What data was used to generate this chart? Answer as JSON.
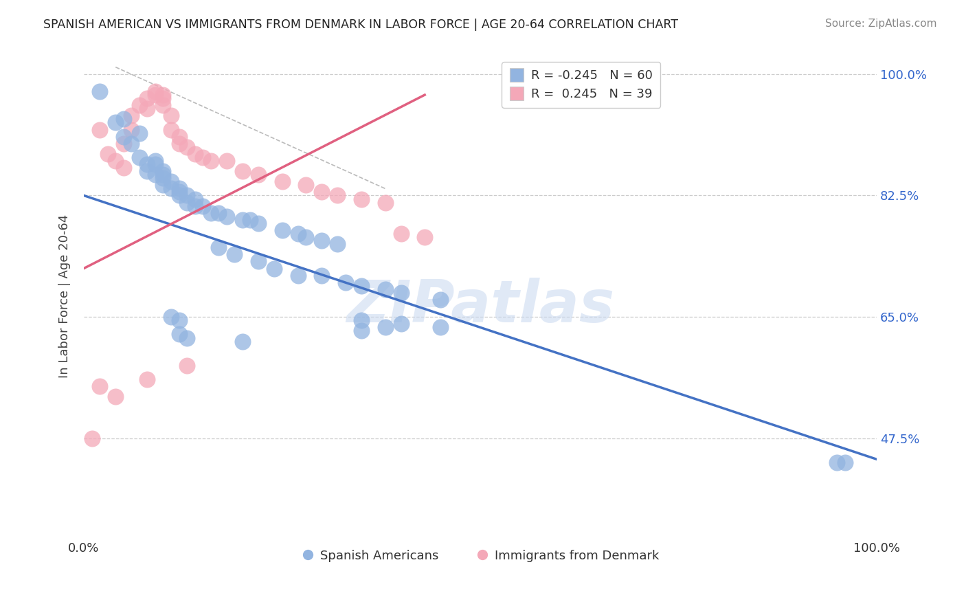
{
  "title": "SPANISH AMERICAN VS IMMIGRANTS FROM DENMARK IN LABOR FORCE | AGE 20-64 CORRELATION CHART",
  "source_text": "Source: ZipAtlas.com",
  "ylabel": "In Labor Force | Age 20-64",
  "xlim": [
    0.0,
    1.0
  ],
  "ylim": [
    0.33,
    1.03
  ],
  "yticks": [
    0.475,
    0.65,
    0.825,
    1.0
  ],
  "ytick_labels": [
    "47.5%",
    "65.0%",
    "82.5%",
    "100.0%"
  ],
  "legend_label1": "Spanish Americans",
  "legend_label2": "Immigrants from Denmark",
  "R1": -0.245,
  "N1": 60,
  "R2": 0.245,
  "N2": 39,
  "color_blue": "#92b4e0",
  "color_pink": "#f4a8b8",
  "trendline_blue": "#4472c4",
  "trendline_pink": "#e06080",
  "watermark": "ZIPatlas",
  "background_color": "#ffffff",
  "grid_color": "#cccccc",
  "blue_trend_x": [
    0.0,
    1.0
  ],
  "blue_trend_y": [
    0.825,
    0.445
  ],
  "pink_trend_x": [
    0.0,
    0.43
  ],
  "pink_trend_y": [
    0.72,
    0.97
  ],
  "ref_line_x": [
    0.04,
    0.38
  ],
  "ref_line_y": [
    1.01,
    0.835
  ],
  "blue_x": [
    0.02,
    0.04,
    0.05,
    0.05,
    0.06,
    0.07,
    0.07,
    0.08,
    0.08,
    0.09,
    0.09,
    0.09,
    0.1,
    0.1,
    0.1,
    0.1,
    0.11,
    0.11,
    0.12,
    0.12,
    0.12,
    0.13,
    0.13,
    0.14,
    0.14,
    0.15,
    0.16,
    0.17,
    0.18,
    0.2,
    0.21,
    0.22,
    0.25,
    0.27,
    0.28,
    0.3,
    0.32,
    0.17,
    0.19,
    0.22,
    0.24,
    0.27,
    0.3,
    0.33,
    0.35,
    0.38,
    0.4,
    0.45,
    0.35,
    0.38,
    0.11,
    0.12,
    0.4,
    0.45,
    0.12,
    0.13,
    0.2,
    0.95,
    0.96,
    0.35
  ],
  "blue_y": [
    0.975,
    0.93,
    0.935,
    0.91,
    0.9,
    0.915,
    0.88,
    0.87,
    0.86,
    0.875,
    0.87,
    0.855,
    0.86,
    0.855,
    0.85,
    0.84,
    0.845,
    0.835,
    0.835,
    0.83,
    0.825,
    0.825,
    0.815,
    0.82,
    0.81,
    0.81,
    0.8,
    0.8,
    0.795,
    0.79,
    0.79,
    0.785,
    0.775,
    0.77,
    0.765,
    0.76,
    0.755,
    0.75,
    0.74,
    0.73,
    0.72,
    0.71,
    0.71,
    0.7,
    0.695,
    0.69,
    0.685,
    0.675,
    0.645,
    0.635,
    0.65,
    0.645,
    0.64,
    0.635,
    0.625,
    0.62,
    0.615,
    0.44,
    0.44,
    0.63
  ],
  "pink_x": [
    0.01,
    0.02,
    0.03,
    0.04,
    0.05,
    0.05,
    0.06,
    0.06,
    0.07,
    0.08,
    0.08,
    0.09,
    0.09,
    0.1,
    0.1,
    0.1,
    0.11,
    0.11,
    0.12,
    0.12,
    0.13,
    0.14,
    0.15,
    0.16,
    0.18,
    0.2,
    0.22,
    0.25,
    0.28,
    0.3,
    0.32,
    0.35,
    0.38,
    0.4,
    0.43,
    0.02,
    0.04,
    0.08,
    0.13
  ],
  "pink_y": [
    0.475,
    0.92,
    0.885,
    0.875,
    0.865,
    0.9,
    0.92,
    0.94,
    0.955,
    0.95,
    0.965,
    0.97,
    0.975,
    0.97,
    0.965,
    0.955,
    0.94,
    0.92,
    0.91,
    0.9,
    0.895,
    0.885,
    0.88,
    0.875,
    0.875,
    0.86,
    0.855,
    0.845,
    0.84,
    0.83,
    0.825,
    0.82,
    0.815,
    0.77,
    0.765,
    0.55,
    0.535,
    0.56,
    0.58
  ]
}
